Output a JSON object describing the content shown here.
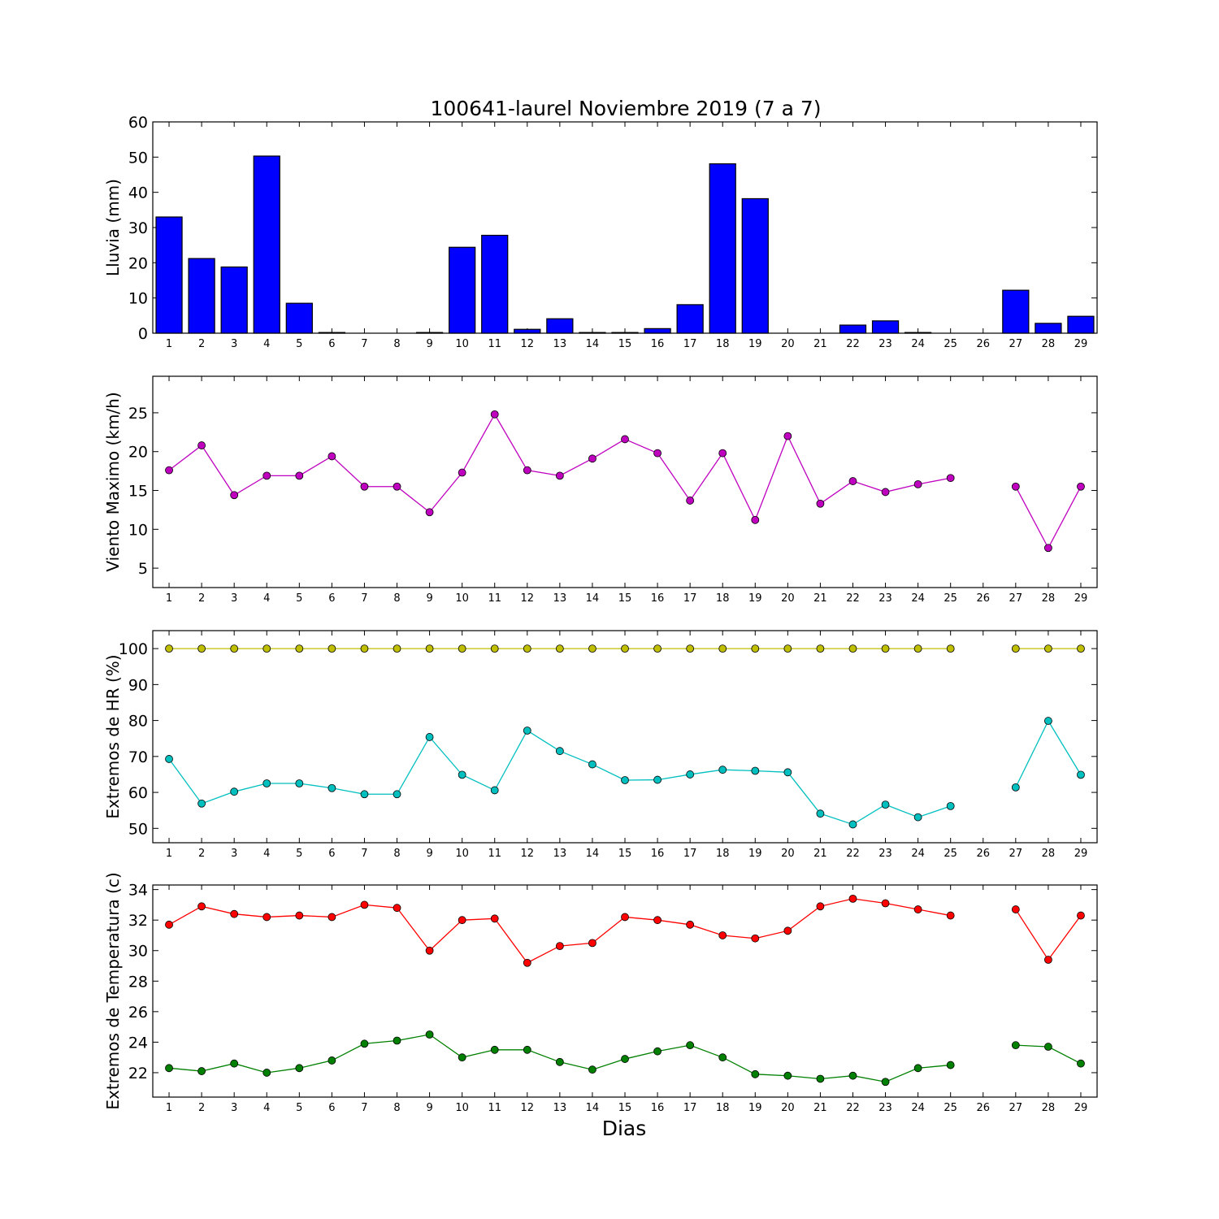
{
  "figure": {
    "title": "100641-laurel Noviembre 2019  (7 a 7)",
    "xlabel": "Dias"
  },
  "chart_data": [
    {
      "type": "bar",
      "ylabel": "Lluvia (mm)",
      "x": [
        1,
        2,
        3,
        4,
        5,
        6,
        7,
        8,
        9,
        10,
        11,
        12,
        13,
        14,
        15,
        16,
        17,
        18,
        19,
        20,
        21,
        22,
        23,
        24,
        25,
        26,
        27,
        28,
        29
      ],
      "values": [
        33,
        21.2,
        18.8,
        50.3,
        8.5,
        0.2,
        0,
        0,
        0.2,
        24.4,
        27.8,
        1.1,
        4.1,
        0.2,
        0.2,
        1.3,
        8.1,
        48.1,
        38.2,
        0,
        0,
        2.3,
        3.5,
        0.2,
        0,
        0,
        12.2,
        2.8,
        4.8
      ],
      "ylim": [
        0,
        60
      ],
      "yticks": [
        0,
        10,
        20,
        30,
        40,
        50,
        60
      ],
      "color": "#0000ff"
    },
    {
      "type": "line",
      "ylabel": "Viento Maximo (km/h)",
      "x": [
        1,
        2,
        3,
        4,
        5,
        6,
        7,
        8,
        9,
        10,
        11,
        12,
        13,
        14,
        15,
        16,
        17,
        18,
        19,
        20,
        21,
        22,
        23,
        24,
        25,
        26,
        27,
        28,
        29
      ],
      "series": [
        {
          "color": "#bf00bf",
          "values": [
            17.6,
            20.8,
            14.4,
            16.9,
            16.9,
            19.4,
            15.5,
            15.5,
            12.2,
            17.3,
            24.8,
            17.6,
            16.9,
            19.1,
            21.6,
            19.8,
            13.7,
            19.8,
            11.2,
            22,
            13.3,
            16.2,
            14.8,
            15.8,
            16.6,
            null,
            15.5,
            7.6,
            15.5
          ]
        }
      ],
      "ylim": [
        2.5,
        29.7
      ],
      "yticks": [
        5,
        10,
        15,
        20,
        25
      ]
    },
    {
      "type": "line",
      "ylabel": "Extremos de HR (%)",
      "x": [
        1,
        2,
        3,
        4,
        5,
        6,
        7,
        8,
        9,
        10,
        11,
        12,
        13,
        14,
        15,
        16,
        17,
        18,
        19,
        20,
        21,
        22,
        23,
        24,
        25,
        26,
        27,
        28,
        29
      ],
      "series": [
        {
          "color": "#bfbf00",
          "values": [
            100,
            100,
            100,
            100,
            100,
            100,
            100,
            100,
            100,
            100,
            100,
            100,
            100,
            100,
            100,
            100,
            100,
            100,
            100,
            100,
            100,
            100,
            100,
            100,
            100,
            null,
            100,
            100,
            100
          ]
        },
        {
          "color": "#00bfbf",
          "values": [
            69.3,
            56.9,
            60.2,
            62.5,
            62.5,
            61.2,
            59.5,
            59.5,
            75.4,
            64.9,
            60.6,
            77.2,
            71.5,
            67.8,
            63.4,
            63.5,
            65,
            66.3,
            66,
            65.6,
            54.1,
            51.1,
            56.6,
            53.1,
            56.2,
            null,
            61.4,
            79.9,
            64.9
          ]
        }
      ],
      "ylim": [
        46,
        105
      ],
      "yticks": [
        50,
        60,
        70,
        80,
        90,
        100
      ]
    },
    {
      "type": "line",
      "ylabel": "Extremos de Temperatura (c)",
      "x": [
        1,
        2,
        3,
        4,
        5,
        6,
        7,
        8,
        9,
        10,
        11,
        12,
        13,
        14,
        15,
        16,
        17,
        18,
        19,
        20,
        21,
        22,
        23,
        24,
        25,
        26,
        27,
        28,
        29
      ],
      "series": [
        {
          "color": "#ff0000",
          "values": [
            31.7,
            32.9,
            32.4,
            32.2,
            32.3,
            32.2,
            33,
            32.8,
            30,
            32,
            32.1,
            29.2,
            30.3,
            30.5,
            32.2,
            32,
            31.7,
            31,
            30.8,
            31.3,
            32.9,
            33.4,
            33.1,
            32.7,
            32.3,
            null,
            32.7,
            29.4,
            32.3
          ]
        },
        {
          "color": "#008000",
          "values": [
            22.3,
            22.1,
            22.6,
            22,
            22.3,
            22.8,
            23.9,
            24.1,
            24.5,
            23,
            23.5,
            23.5,
            22.7,
            22.2,
            22.9,
            23.4,
            23.8,
            23,
            21.9,
            21.8,
            21.6,
            21.8,
            21.4,
            22.3,
            22.5,
            null,
            23.8,
            23.7,
            22.6
          ]
        }
      ],
      "ylim": [
        20.4,
        34.3
      ],
      "yticks": [
        22,
        24,
        26,
        28,
        30,
        32,
        34
      ]
    }
  ]
}
